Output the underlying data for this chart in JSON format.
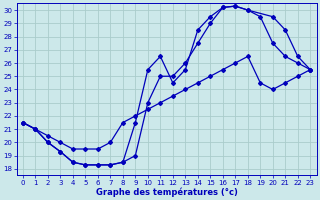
{
  "bg_color": "#cce8ea",
  "grid_color": "#aacccc",
  "line_color": "#0000bb",
  "xlabel": "Graphe des températures (°c)",
  "xlim": [
    -0.5,
    23.5
  ],
  "ylim": [
    17.5,
    30.5
  ],
  "yticks": [
    18,
    19,
    20,
    21,
    22,
    23,
    24,
    25,
    26,
    27,
    28,
    29,
    30
  ],
  "xticks": [
    0,
    1,
    2,
    3,
    4,
    5,
    6,
    7,
    8,
    9,
    10,
    11,
    12,
    13,
    14,
    15,
    16,
    17,
    18,
    19,
    20,
    21,
    22,
    23
  ],
  "line1_x": [
    0,
    1,
    2,
    3,
    4,
    5,
    6,
    7,
    8,
    9,
    10,
    11,
    12,
    13,
    14,
    15,
    16,
    17,
    18,
    19,
    20,
    21,
    22,
    23
  ],
  "line1_y": [
    21.5,
    21.0,
    20.0,
    19.3,
    18.5,
    18.3,
    18.3,
    18.3,
    18.5,
    19.0,
    23.0,
    25.0,
    25.0,
    26.0,
    27.5,
    29.0,
    30.2,
    30.3,
    30.0,
    29.5,
    27.5,
    26.5,
    26.0,
    25.5
  ],
  "line2_x": [
    0,
    1,
    2,
    3,
    4,
    5,
    6,
    7,
    8,
    9,
    10,
    11,
    12,
    13,
    14,
    15,
    16,
    17,
    18,
    20,
    21,
    22,
    23
  ],
  "line2_y": [
    21.5,
    21.0,
    20.0,
    19.3,
    18.5,
    18.3,
    18.3,
    18.3,
    18.5,
    21.5,
    25.5,
    26.5,
    24.5,
    25.5,
    28.5,
    29.5,
    30.2,
    30.3,
    30.0,
    29.5,
    28.5,
    26.5,
    25.5
  ],
  "line3_x": [
    0,
    1,
    2,
    3,
    4,
    5,
    6,
    7,
    8,
    9,
    10,
    11,
    12,
    13,
    14,
    15,
    16,
    17,
    18,
    19,
    20,
    21,
    22,
    23
  ],
  "line3_y": [
    21.5,
    21.0,
    20.5,
    20.0,
    19.5,
    19.5,
    19.5,
    20.0,
    21.5,
    22.0,
    22.5,
    23.0,
    23.5,
    24.0,
    24.5,
    25.0,
    25.5,
    26.0,
    26.5,
    24.5,
    24.0,
    24.5,
    25.0,
    25.5
  ]
}
